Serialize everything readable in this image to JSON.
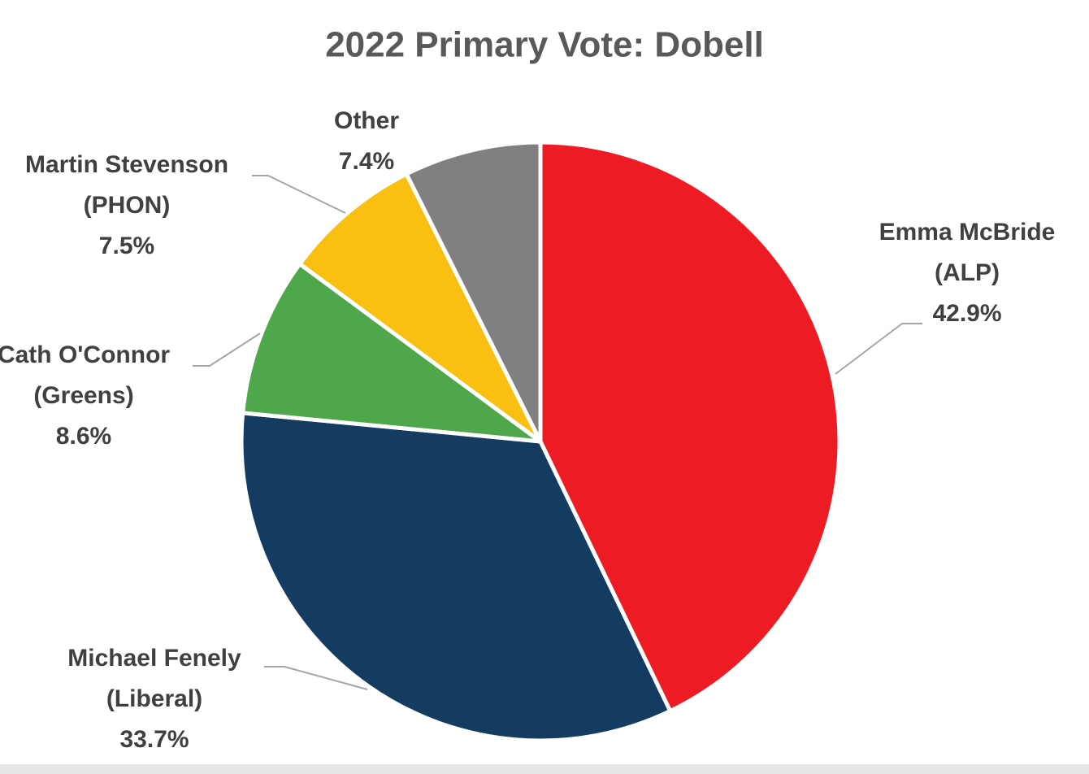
{
  "chart_data": {
    "type": "pie",
    "title": "2022 Primary Vote: Dobell",
    "categories": [
      "Emma McBride (ALP)",
      "Michael Fenely (Liberal)",
      "Cath O'Connor (Greens)",
      "Martin Stevenson (PHON)",
      "Other"
    ],
    "values": [
      42.9,
      33.7,
      8.6,
      7.5,
      7.4
    ],
    "value_labels": [
      "42.9%",
      "33.7%",
      "8.6%",
      "7.5%",
      "7.4%"
    ],
    "colors": [
      "#ed1c24",
      "#133c60",
      "#4ea74a",
      "#f9c012",
      "#808080"
    ]
  }
}
